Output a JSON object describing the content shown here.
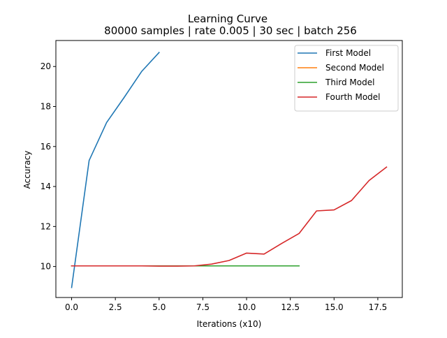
{
  "chart_data": {
    "type": "line",
    "title": "Learning Curve",
    "subtitle": "80000 samples | rate 0.005 | 30 sec | batch 256",
    "xlabel": "Iterations (x10)",
    "ylabel": "Accuracy",
    "xlim": [
      -0.9,
      18.9
    ],
    "ylim": [
      8.45,
      21.3
    ],
    "xticks": [
      0.0,
      2.5,
      5.0,
      7.5,
      10.0,
      12.5,
      15.0,
      17.5
    ],
    "xtick_labels": [
      "0.0",
      "2.5",
      "5.0",
      "7.5",
      "10.0",
      "12.5",
      "15.0",
      "17.5"
    ],
    "yticks": [
      10,
      12,
      14,
      16,
      18,
      20
    ],
    "ytick_labels": [
      "10",
      "12",
      "14",
      "16",
      "18",
      "20"
    ],
    "grid": false,
    "legend_position": "top-right",
    "series": [
      {
        "name": "First Model",
        "color": "#1f77b4",
        "x": [
          0,
          1,
          2,
          3,
          4,
          5
        ],
        "y": [
          8.95,
          15.3,
          17.2,
          18.45,
          19.75,
          20.7
        ]
      },
      {
        "name": "Second Model",
        "color": "#ff7f0e",
        "x": [
          0,
          1,
          2,
          3,
          4,
          5,
          6,
          7
        ],
        "y": [
          10.03,
          10.03,
          10.03,
          10.03,
          10.03,
          10.03,
          10.03,
          10.03
        ]
      },
      {
        "name": "Third Model",
        "color": "#2ca02c",
        "x": [
          0,
          1,
          2,
          3,
          4,
          5,
          6,
          7,
          8,
          9,
          10,
          11,
          12,
          13
        ],
        "y": [
          10.03,
          10.03,
          10.03,
          10.03,
          10.03,
          10.03,
          10.03,
          10.03,
          10.03,
          10.03,
          10.03,
          10.03,
          10.03,
          10.03
        ]
      },
      {
        "name": "Fourth Model",
        "color": "#d62728",
        "x": [
          0,
          1,
          2,
          3,
          4,
          5,
          6,
          7,
          8,
          9,
          10,
          11,
          12,
          13,
          14,
          15,
          16,
          17,
          18
        ],
        "y": [
          10.03,
          10.03,
          10.03,
          10.03,
          10.03,
          10.02,
          10.02,
          10.03,
          10.12,
          10.3,
          10.67,
          10.62,
          11.15,
          11.65,
          12.78,
          12.83,
          13.3,
          14.3,
          14.97
        ]
      }
    ]
  }
}
